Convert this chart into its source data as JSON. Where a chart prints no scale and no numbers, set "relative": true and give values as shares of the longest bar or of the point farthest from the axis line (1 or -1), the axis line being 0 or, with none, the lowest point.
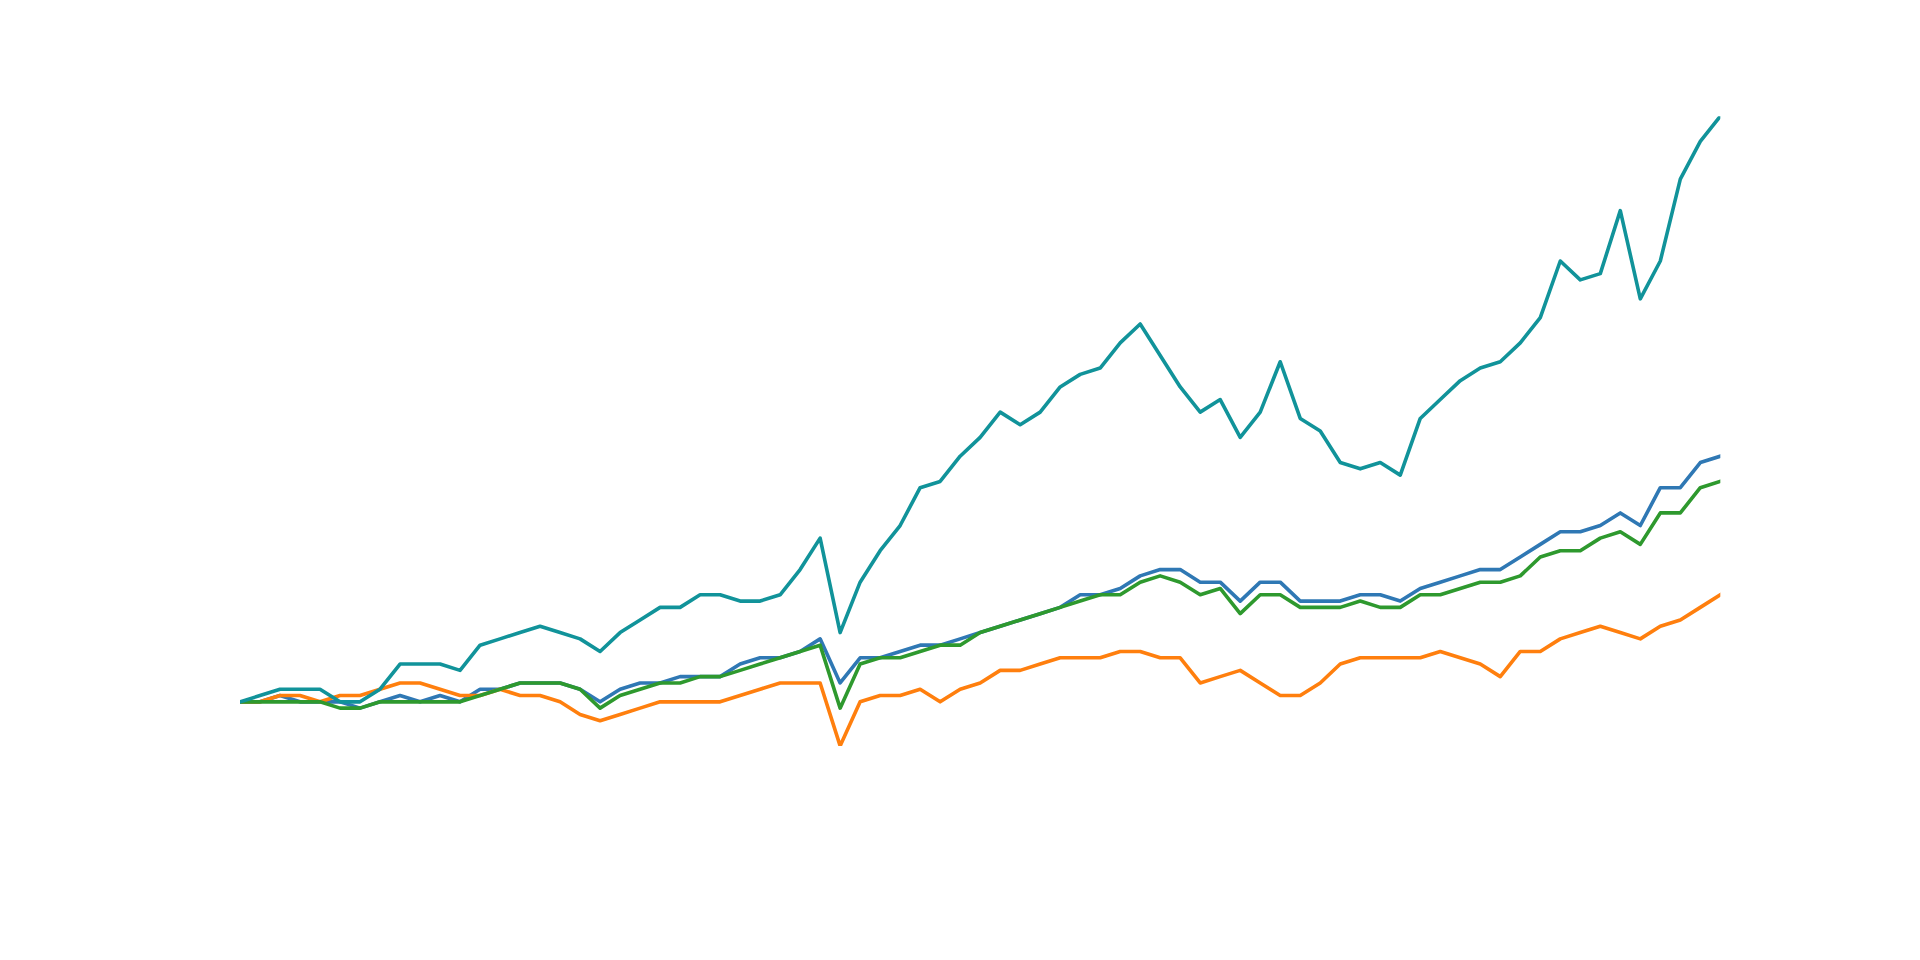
{
  "chart_data": {
    "type": "line",
    "relative": true,
    "grid": false,
    "marker": "none",
    "line_style": "solid",
    "categories": [
      null,
      null,
      null,
      null,
      null,
      null,
      null,
      null,
      null,
      null,
      null,
      null,
      null,
      null,
      null,
      null,
      null,
      null,
      null,
      null,
      null,
      null,
      null,
      null,
      null,
      null,
      null,
      null,
      null,
      null,
      null,
      null,
      null,
      null,
      null,
      null,
      null,
      null,
      null,
      null,
      null,
      null,
      null,
      null,
      null,
      null,
      null,
      null,
      null,
      null,
      null,
      null,
      null,
      null,
      null,
      null,
      null,
      null,
      null,
      null,
      null,
      null,
      null,
      null,
      null,
      null,
      null,
      null,
      null,
      null,
      null,
      null,
      null,
      null,
      null
    ],
    "series": [
      {
        "color": "#2f78b4",
        "values": [
          0.07,
          0.07,
          0.08,
          0.07,
          0.07,
          0.07,
          0.06,
          0.07,
          0.08,
          0.07,
          0.08,
          0.07,
          0.09,
          0.09,
          0.1,
          0.1,
          0.1,
          0.09,
          0.07,
          0.09,
          0.1,
          0.1,
          0.11,
          0.11,
          0.11,
          0.13,
          0.14,
          0.14,
          0.15,
          0.17,
          0.1,
          0.14,
          0.14,
          0.15,
          0.16,
          0.16,
          0.17,
          0.18,
          0.19,
          0.2,
          0.21,
          0.22,
          0.24,
          0.24,
          0.25,
          0.27,
          0.28,
          0.28,
          0.26,
          0.26,
          0.23,
          0.26,
          0.26,
          0.23,
          0.23,
          0.23,
          0.24,
          0.24,
          0.23,
          0.25,
          0.26,
          0.27,
          0.28,
          0.28,
          0.3,
          0.32,
          0.34,
          0.34,
          0.35,
          0.37,
          0.35,
          0.41,
          0.41,
          0.45,
          0.46
        ]
      },
      {
        "color": "#ff7f0e",
        "values": [
          0.07,
          0.07,
          0.08,
          0.08,
          0.07,
          0.08,
          0.08,
          0.09,
          0.1,
          0.1,
          0.09,
          0.08,
          0.08,
          0.09,
          0.08,
          0.08,
          0.07,
          0.05,
          0.04,
          0.05,
          0.06,
          0.07,
          0.07,
          0.07,
          0.07,
          0.08,
          0.09,
          0.1,
          0.1,
          0.1,
          0.0,
          0.07,
          0.08,
          0.08,
          0.09,
          0.07,
          0.09,
          0.1,
          0.12,
          0.12,
          0.13,
          0.14,
          0.14,
          0.14,
          0.15,
          0.15,
          0.14,
          0.14,
          0.1,
          0.11,
          0.12,
          0.1,
          0.08,
          0.08,
          0.1,
          0.13,
          0.14,
          0.14,
          0.14,
          0.14,
          0.15,
          0.14,
          0.13,
          0.11,
          0.15,
          0.15,
          0.17,
          0.18,
          0.19,
          0.18,
          0.17,
          0.19,
          0.2,
          0.22,
          0.24
        ]
      },
      {
        "color": "#2e992e",
        "values": [
          0.07,
          0.07,
          0.07,
          0.07,
          0.07,
          0.06,
          0.06,
          0.07,
          0.07,
          0.07,
          0.07,
          0.07,
          0.08,
          0.09,
          0.1,
          0.1,
          0.1,
          0.09,
          0.06,
          0.08,
          0.09,
          0.1,
          0.1,
          0.11,
          0.11,
          0.12,
          0.13,
          0.14,
          0.15,
          0.16,
          0.06,
          0.13,
          0.14,
          0.14,
          0.15,
          0.16,
          0.16,
          0.18,
          0.19,
          0.2,
          0.21,
          0.22,
          0.23,
          0.24,
          0.24,
          0.26,
          0.27,
          0.26,
          0.24,
          0.25,
          0.21,
          0.24,
          0.24,
          0.22,
          0.22,
          0.22,
          0.23,
          0.22,
          0.22,
          0.24,
          0.24,
          0.25,
          0.26,
          0.26,
          0.27,
          0.3,
          0.31,
          0.31,
          0.33,
          0.34,
          0.32,
          0.37,
          0.37,
          0.41,
          0.42
        ]
      },
      {
        "color": "#11939a",
        "values": [
          0.07,
          0.08,
          0.09,
          0.09,
          0.09,
          0.07,
          0.07,
          0.09,
          0.13,
          0.13,
          0.13,
          0.12,
          0.16,
          0.17,
          0.18,
          0.19,
          0.18,
          0.17,
          0.15,
          0.18,
          0.2,
          0.22,
          0.22,
          0.24,
          0.24,
          0.23,
          0.23,
          0.24,
          0.28,
          0.33,
          0.18,
          0.26,
          0.31,
          0.35,
          0.41,
          0.42,
          0.46,
          0.49,
          0.53,
          0.51,
          0.53,
          0.57,
          0.59,
          0.6,
          0.64,
          0.67,
          0.62,
          0.57,
          0.53,
          0.55,
          0.49,
          0.53,
          0.61,
          0.52,
          0.5,
          0.45,
          0.44,
          0.45,
          0.43,
          0.52,
          0.55,
          0.58,
          0.6,
          0.61,
          0.64,
          0.68,
          0.77,
          0.74,
          0.75,
          0.85,
          0.71,
          0.77,
          0.9,
          0.96,
          1.0
        ]
      }
    ]
  }
}
